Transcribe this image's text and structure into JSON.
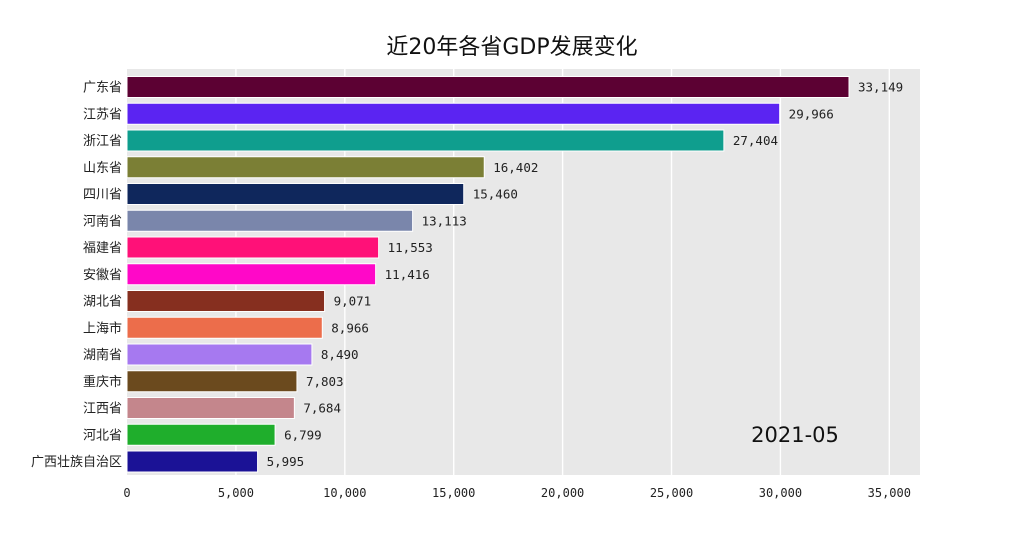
{
  "chart_data": {
    "type": "bar",
    "orientation": "horizontal",
    "title": "近20年各省GDP发展变化",
    "annotation": "2021-05",
    "categories": [
      "广东省",
      "江苏省",
      "浙江省",
      "山东省",
      "四川省",
      "河南省",
      "福建省",
      "安徽省",
      "湖北省",
      "上海市",
      "湖南省",
      "重庆市",
      "江西省",
      "河北省",
      "广西壮族自治区"
    ],
    "values": [
      33149,
      29966,
      27404,
      16402,
      15460,
      13113,
      11553,
      11416,
      9071,
      8966,
      8490,
      7803,
      7684,
      6799,
      5995
    ],
    "value_labels": [
      "33,149",
      "29,966",
      "27,404",
      "16,402",
      "15,460",
      "13,113",
      "11,553",
      "11,416",
      "9,071",
      "8,966",
      "8,490",
      "7,803",
      "7,684",
      "6,799",
      "5,995"
    ],
    "colors": [
      "#5c0133",
      "#5b24f2",
      "#0f9e8e",
      "#7b7f35",
      "#0f275c",
      "#7a86ab",
      "#ff1178",
      "#ff08c8",
      "#862f1f",
      "#ec6d4b",
      "#a679f0",
      "#6b4a1e",
      "#c4868c",
      "#1fae2c",
      "#1b1296"
    ],
    "xlim": [
      0,
      35000
    ],
    "xticks": [
      0,
      5000,
      10000,
      15000,
      20000,
      25000,
      30000,
      35000
    ],
    "xtick_labels": [
      "0",
      "5,000",
      "10,000",
      "15,000",
      "20,000",
      "25,000",
      "30,000",
      "35,000"
    ],
    "grid": true,
    "background": "#e8e8e8"
  }
}
